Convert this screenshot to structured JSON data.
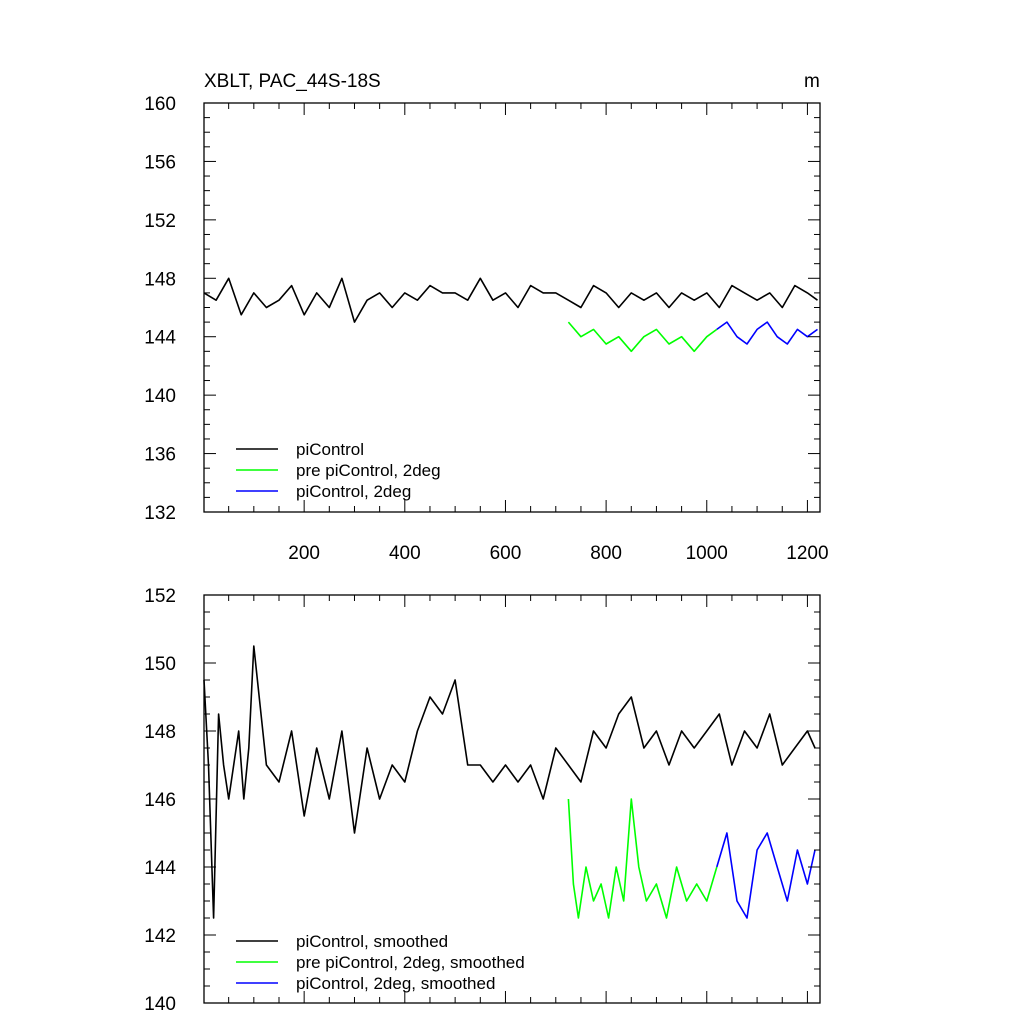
{
  "chart_data": [
    {
      "type": "line",
      "title": "XBLT, PAC_44S-18S",
      "units": "m",
      "xlim": [
        1,
        1225
      ],
      "ylim": [
        132,
        160
      ],
      "x_ticks": [
        200,
        400,
        600,
        800,
        1000,
        1200
      ],
      "x_tick_labels": [
        "200",
        "400",
        "600",
        "800",
        "1000",
        "1200"
      ],
      "y_ticks": [
        132,
        136,
        140,
        144,
        148,
        152,
        156,
        160
      ],
      "y_tick_labels": [
        "132",
        "136",
        "140",
        "144",
        "148",
        "152",
        "156",
        "160"
      ],
      "legend_position": "bottom-left",
      "series": [
        {
          "name": "piControl",
          "color": "#000000",
          "x": [
            1,
            25,
            50,
            75,
            100,
            125,
            150,
            175,
            200,
            225,
            250,
            275,
            300,
            325,
            350,
            375,
            400,
            425,
            450,
            475,
            500,
            525,
            550,
            575,
            600,
            625,
            650,
            675,
            700,
            725,
            750,
            775,
            800,
            825,
            850,
            875,
            900,
            925,
            950,
            975,
            1000,
            1025,
            1050,
            1075,
            1100,
            1125,
            1150,
            1175,
            1200,
            1220
          ],
          "y": [
            147,
            146.5,
            148,
            145.5,
            147,
            146,
            146.5,
            147.5,
            145.5,
            147,
            146,
            148,
            145,
            146.5,
            147,
            146,
            147,
            146.5,
            147.5,
            147,
            147,
            146.5,
            148,
            146.5,
            147,
            146,
            147.5,
            147,
            147,
            146.5,
            146,
            147.5,
            147,
            146,
            147,
            146.5,
            147,
            146,
            147,
            146.5,
            147,
            146,
            147.5,
            147,
            146.5,
            147,
            146,
            147.5,
            147,
            146.5
          ]
        },
        {
          "name": "pre piControl, 2deg",
          "color": "#00ff00",
          "x": [
            725,
            750,
            775,
            800,
            825,
            850,
            875,
            900,
            925,
            950,
            975,
            1000,
            1020
          ],
          "y": [
            145,
            144,
            144.5,
            143.5,
            144,
            143,
            144,
            144.5,
            143.5,
            144,
            143,
            144,
            144.5
          ]
        },
        {
          "name": "piControl, 2deg",
          "color": "#0000ff",
          "x": [
            1020,
            1040,
            1060,
            1080,
            1100,
            1120,
            1140,
            1160,
            1180,
            1200,
            1220
          ],
          "y": [
            144.5,
            145,
            144,
            143.5,
            144.5,
            145,
            144,
            143.5,
            144.5,
            144,
            144.5
          ]
        }
      ]
    },
    {
      "type": "line",
      "xlim": [
        1,
        1225
      ],
      "ylim": [
        140,
        152
      ],
      "y_ticks": [
        140,
        142,
        144,
        146,
        148,
        150,
        152
      ],
      "y_tick_labels": [
        "140",
        "142",
        "144",
        "146",
        "148",
        "150",
        "152"
      ],
      "legend_position": "bottom-left",
      "series": [
        {
          "name": "piControl, smoothed",
          "color": "#000000",
          "x": [
            1,
            10,
            20,
            30,
            40,
            50,
            60,
            70,
            80,
            90,
            100,
            125,
            150,
            175,
            200,
            225,
            250,
            275,
            300,
            325,
            350,
            375,
            400,
            425,
            450,
            475,
            500,
            525,
            550,
            575,
            600,
            625,
            650,
            675,
            700,
            725,
            750,
            775,
            800,
            825,
            850,
            875,
            900,
            925,
            950,
            975,
            1000,
            1025,
            1050,
            1075,
            1100,
            1125,
            1150,
            1175,
            1200,
            1215
          ],
          "y": [
            149.5,
            147,
            142.5,
            148.5,
            147,
            146,
            147,
            148,
            146,
            147.5,
            150.5,
            147,
            146.5,
            148,
            145.5,
            147.5,
            146,
            148,
            145,
            147.5,
            146,
            147,
            146.5,
            148,
            149,
            148.5,
            149.5,
            147,
            147,
            146.5,
            147,
            146.5,
            147,
            146,
            147.5,
            147,
            146.5,
            148,
            147.5,
            148.5,
            149,
            147.5,
            148,
            147,
            148,
            147.5,
            148,
            148.5,
            147,
            148,
            147.5,
            148.5,
            147,
            147.5,
            148,
            147.5
          ]
        },
        {
          "name": "pre piControl, 2deg, smoothed",
          "color": "#00ff00",
          "x": [
            725,
            735,
            745,
            760,
            775,
            790,
            805,
            820,
            835,
            850,
            865,
            880,
            900,
            920,
            940,
            960,
            980,
            1000,
            1020
          ],
          "y": [
            146,
            143.5,
            142.5,
            144,
            143,
            143.5,
            142.5,
            144,
            143,
            146,
            144,
            143,
            143.5,
            142.5,
            144,
            143,
            143.5,
            143,
            144
          ]
        },
        {
          "name": "piControl, 2deg, smoothed",
          "color": "#0000ff",
          "x": [
            1020,
            1040,
            1060,
            1080,
            1100,
            1120,
            1140,
            1160,
            1180,
            1200,
            1215
          ],
          "y": [
            144,
            145,
            143,
            142.5,
            144.5,
            145,
            144,
            143,
            144.5,
            143.5,
            144.5
          ]
        }
      ]
    }
  ]
}
